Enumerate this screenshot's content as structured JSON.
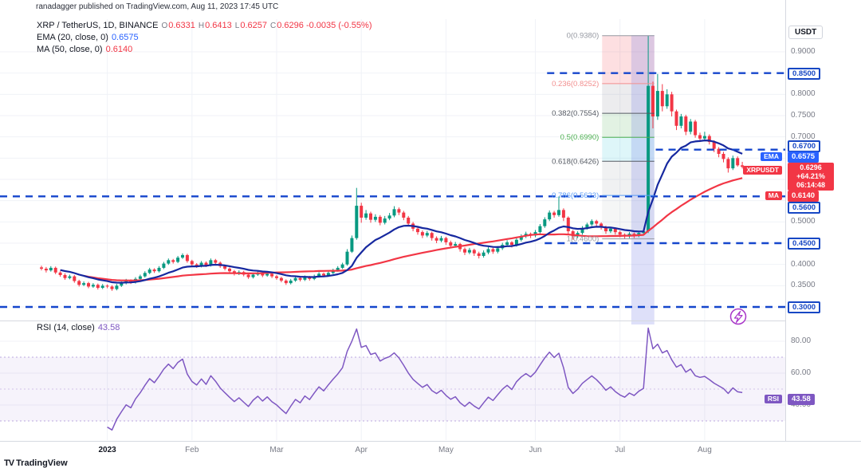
{
  "header": {
    "publish_line": "ranadagger published on TradingView.com, Aug 11, 2023 17:45 UTC"
  },
  "legend": {
    "symbol": "XRP / TetherUS, 1D, BINANCE",
    "ohlc": {
      "o_label": "O",
      "o": "0.6331",
      "h_label": "H",
      "h": "0.6413",
      "l_label": "L",
      "l": "0.6257",
      "c_label": "C",
      "c": "0.6296"
    },
    "change": "-0.0035 (-0.55%)",
    "ema_label": "EMA (20, close, 0)",
    "ema_value": "0.6575",
    "ma_label": "MA (50, close, 0)",
    "ma_value": "0.6140"
  },
  "rsi_legend": {
    "label": "RSI (14, close)",
    "value": "43.58"
  },
  "axis": {
    "currency_button": "USDT",
    "plain_ticks": [
      {
        "price": 0.9,
        "label": "0.9000"
      },
      {
        "price": 0.8,
        "label": "0.8000"
      },
      {
        "price": 0.75,
        "label": "0.7500"
      },
      {
        "price": 0.7,
        "label": "0.7000"
      },
      {
        "price": 0.5,
        "label": "0.5000"
      },
      {
        "price": 0.4,
        "label": "0.4000"
      },
      {
        "price": 0.35,
        "label": "0.3500"
      }
    ],
    "level_badges": [
      {
        "price": 0.85,
        "label": "0.8500"
      },
      {
        "price": 0.67,
        "label": "0.6700"
      },
      {
        "price": 0.56,
        "label": "0.5600"
      },
      {
        "price": 0.45,
        "label": "0.4500"
      },
      {
        "price": 0.3,
        "label": "0.3000"
      }
    ],
    "ema_badge": {
      "chip": "EMA",
      "value": "0.6575"
    },
    "ma_badge": {
      "chip": "MA",
      "value": "0.6140"
    },
    "symbol_badge": {
      "chip": "XRPUSDT",
      "value": "0.6296",
      "change": "+64.21%",
      "countdown": "06:14:48"
    },
    "rsi_badge": {
      "chip": "RSI",
      "value": "43.58"
    },
    "rsi_ticks": [
      {
        "v": 80,
        "label": "80.00"
      },
      {
        "v": 60,
        "label": "60.00"
      },
      {
        "v": 40,
        "label": "40.00"
      }
    ]
  },
  "time_axis": {
    "labels": [
      {
        "text": "2023",
        "index": 14,
        "year": true
      },
      {
        "text": "Feb",
        "index": 32
      },
      {
        "text": "Mar",
        "index": 50
      },
      {
        "text": "Apr",
        "index": 68
      },
      {
        "text": "May",
        "index": 86
      },
      {
        "text": "Jun",
        "index": 105
      },
      {
        "text": "Jul",
        "index": 123
      },
      {
        "text": "Aug",
        "index": 141
      }
    ]
  },
  "footer": {
    "mark": "TV",
    "brand": "TradingView"
  },
  "chart_data": {
    "type": "candlestick",
    "symbol": "XRP/USDT",
    "interval": "1D",
    "exchange": "BINANCE",
    "price_range": [
      0.27,
      0.95
    ],
    "grid": true,
    "colors": {
      "up": "#089981",
      "down": "#f23645"
    },
    "candles": [
      [
        0.393,
        0.397,
        0.386,
        0.39
      ],
      [
        0.39,
        0.394,
        0.381,
        0.386
      ],
      [
        0.386,
        0.396,
        0.383,
        0.392
      ],
      [
        0.392,
        0.395,
        0.377,
        0.381
      ],
      [
        0.381,
        0.384,
        0.371,
        0.375
      ],
      [
        0.375,
        0.379,
        0.364,
        0.368
      ],
      [
        0.368,
        0.376,
        0.365,
        0.372
      ],
      [
        0.372,
        0.375,
        0.357,
        0.361
      ],
      [
        0.361,
        0.364,
        0.348,
        0.352
      ],
      [
        0.352,
        0.36,
        0.349,
        0.356
      ],
      [
        0.356,
        0.359,
        0.344,
        0.348
      ],
      [
        0.348,
        0.356,
        0.345,
        0.352
      ],
      [
        0.352,
        0.355,
        0.341,
        0.345
      ],
      [
        0.345,
        0.354,
        0.342,
        0.35
      ],
      [
        0.35,
        0.353,
        0.344,
        0.348
      ],
      [
        0.348,
        0.351,
        0.338,
        0.342
      ],
      [
        0.342,
        0.354,
        0.339,
        0.35
      ],
      [
        0.35,
        0.36,
        0.347,
        0.356
      ],
      [
        0.356,
        0.366,
        0.353,
        0.362
      ],
      [
        0.362,
        0.365,
        0.354,
        0.358
      ],
      [
        0.358,
        0.37,
        0.355,
        0.366
      ],
      [
        0.366,
        0.376,
        0.363,
        0.372
      ],
      [
        0.372,
        0.384,
        0.369,
        0.38
      ],
      [
        0.38,
        0.392,
        0.377,
        0.388
      ],
      [
        0.388,
        0.391,
        0.38,
        0.384
      ],
      [
        0.384,
        0.396,
        0.381,
        0.392
      ],
      [
        0.392,
        0.406,
        0.389,
        0.402
      ],
      [
        0.402,
        0.414,
        0.399,
        0.41
      ],
      [
        0.41,
        0.413,
        0.402,
        0.406
      ],
      [
        0.406,
        0.42,
        0.403,
        0.416
      ],
      [
        0.416,
        0.426,
        0.413,
        0.422
      ],
      [
        0.422,
        0.425,
        0.404,
        0.408
      ],
      [
        0.408,
        0.411,
        0.396,
        0.4
      ],
      [
        0.4,
        0.403,
        0.392,
        0.396
      ],
      [
        0.396,
        0.408,
        0.393,
        0.404
      ],
      [
        0.404,
        0.407,
        0.394,
        0.398
      ],
      [
        0.398,
        0.414,
        0.395,
        0.41
      ],
      [
        0.41,
        0.413,
        0.4,
        0.404
      ],
      [
        0.404,
        0.407,
        0.392,
        0.396
      ],
      [
        0.396,
        0.399,
        0.386,
        0.39
      ],
      [
        0.39,
        0.393,
        0.38,
        0.384
      ],
      [
        0.384,
        0.387,
        0.374,
        0.378
      ],
      [
        0.378,
        0.386,
        0.375,
        0.382
      ],
      [
        0.382,
        0.385,
        0.372,
        0.376
      ],
      [
        0.376,
        0.379,
        0.366,
        0.37
      ],
      [
        0.37,
        0.38,
        0.367,
        0.376
      ],
      [
        0.376,
        0.384,
        0.373,
        0.38
      ],
      [
        0.38,
        0.383,
        0.37,
        0.374
      ],
      [
        0.374,
        0.382,
        0.371,
        0.378
      ],
      [
        0.378,
        0.381,
        0.368,
        0.372
      ],
      [
        0.372,
        0.375,
        0.364,
        0.368
      ],
      [
        0.368,
        0.371,
        0.358,
        0.362
      ],
      [
        0.362,
        0.365,
        0.352,
        0.356
      ],
      [
        0.356,
        0.366,
        0.353,
        0.362
      ],
      [
        0.362,
        0.372,
        0.359,
        0.368
      ],
      [
        0.368,
        0.371,
        0.36,
        0.364
      ],
      [
        0.364,
        0.374,
        0.361,
        0.37
      ],
      [
        0.37,
        0.373,
        0.362,
        0.366
      ],
      [
        0.366,
        0.376,
        0.363,
        0.372
      ],
      [
        0.372,
        0.382,
        0.369,
        0.378
      ],
      [
        0.378,
        0.381,
        0.37,
        0.374
      ],
      [
        0.374,
        0.384,
        0.371,
        0.38
      ],
      [
        0.38,
        0.39,
        0.377,
        0.386
      ],
      [
        0.386,
        0.396,
        0.383,
        0.392
      ],
      [
        0.392,
        0.404,
        0.389,
        0.4
      ],
      [
        0.4,
        0.436,
        0.397,
        0.43
      ],
      [
        0.43,
        0.468,
        0.427,
        0.462
      ],
      [
        0.462,
        0.58,
        0.458,
        0.538
      ],
      [
        0.538,
        0.545,
        0.498,
        0.51
      ],
      [
        0.51,
        0.528,
        0.505,
        0.52
      ],
      [
        0.52,
        0.524,
        0.498,
        0.505
      ],
      [
        0.505,
        0.518,
        0.5,
        0.512
      ],
      [
        0.512,
        0.516,
        0.492,
        0.498
      ],
      [
        0.498,
        0.514,
        0.494,
        0.508
      ],
      [
        0.508,
        0.521,
        0.504,
        0.515
      ],
      [
        0.515,
        0.537,
        0.511,
        0.53
      ],
      [
        0.53,
        0.534,
        0.516,
        0.522
      ],
      [
        0.522,
        0.526,
        0.504,
        0.51
      ],
      [
        0.51,
        0.514,
        0.49,
        0.496
      ],
      [
        0.496,
        0.5,
        0.478,
        0.484
      ],
      [
        0.484,
        0.488,
        0.47,
        0.476
      ],
      [
        0.476,
        0.48,
        0.462,
        0.468
      ],
      [
        0.468,
        0.479,
        0.464,
        0.474
      ],
      [
        0.474,
        0.477,
        0.456,
        0.462
      ],
      [
        0.462,
        0.466,
        0.45,
        0.456
      ],
      [
        0.456,
        0.467,
        0.452,
        0.462
      ],
      [
        0.462,
        0.465,
        0.446,
        0.452
      ],
      [
        0.452,
        0.456,
        0.438,
        0.444
      ],
      [
        0.444,
        0.453,
        0.44,
        0.448
      ],
      [
        0.448,
        0.451,
        0.43,
        0.436
      ],
      [
        0.436,
        0.44,
        0.422,
        0.428
      ],
      [
        0.428,
        0.439,
        0.424,
        0.434
      ],
      [
        0.434,
        0.437,
        0.42,
        0.426
      ],
      [
        0.426,
        0.43,
        0.414,
        0.42
      ],
      [
        0.42,
        0.433,
        0.416,
        0.428
      ],
      [
        0.428,
        0.441,
        0.424,
        0.436
      ],
      [
        0.436,
        0.439,
        0.425,
        0.43
      ],
      [
        0.43,
        0.443,
        0.426,
        0.438
      ],
      [
        0.438,
        0.451,
        0.434,
        0.446
      ],
      [
        0.446,
        0.457,
        0.442,
        0.452
      ],
      [
        0.452,
        0.455,
        0.44,
        0.446
      ],
      [
        0.446,
        0.463,
        0.442,
        0.458
      ],
      [
        0.458,
        0.471,
        0.454,
        0.466
      ],
      [
        0.466,
        0.477,
        0.462,
        0.472
      ],
      [
        0.472,
        0.475,
        0.462,
        0.468
      ],
      [
        0.468,
        0.481,
        0.464,
        0.476
      ],
      [
        0.476,
        0.495,
        0.472,
        0.49
      ],
      [
        0.49,
        0.511,
        0.486,
        0.506
      ],
      [
        0.506,
        0.527,
        0.502,
        0.522
      ],
      [
        0.522,
        0.526,
        0.51,
        0.516
      ],
      [
        0.516,
        0.56,
        0.512,
        0.528
      ],
      [
        0.528,
        0.532,
        0.502,
        0.51
      ],
      [
        0.51,
        0.513,
        0.47,
        0.478
      ],
      [
        0.478,
        0.481,
        0.458,
        0.466
      ],
      [
        0.466,
        0.478,
        0.462,
        0.474
      ],
      [
        0.474,
        0.49,
        0.47,
        0.486
      ],
      [
        0.486,
        0.498,
        0.482,
        0.494
      ],
      [
        0.494,
        0.506,
        0.49,
        0.502
      ],
      [
        0.502,
        0.505,
        0.49,
        0.496
      ],
      [
        0.496,
        0.499,
        0.482,
        0.488
      ],
      [
        0.488,
        0.491,
        0.472,
        0.478
      ],
      [
        0.478,
        0.488,
        0.474,
        0.484
      ],
      [
        0.484,
        0.487,
        0.47,
        0.476
      ],
      [
        0.476,
        0.479,
        0.464,
        0.47
      ],
      [
        0.47,
        0.473,
        0.46,
        0.466
      ],
      [
        0.466,
        0.476,
        0.462,
        0.472
      ],
      [
        0.472,
        0.475,
        0.462,
        0.468
      ],
      [
        0.468,
        0.478,
        0.464,
        0.474
      ],
      [
        0.474,
        0.482,
        0.47,
        0.478
      ],
      [
        0.478,
        0.938,
        0.474,
        0.82
      ],
      [
        0.82,
        0.83,
        0.72,
        0.748
      ],
      [
        0.748,
        0.848,
        0.74,
        0.808
      ],
      [
        0.808,
        0.824,
        0.76,
        0.772
      ],
      [
        0.772,
        0.812,
        0.766,
        0.8
      ],
      [
        0.8,
        0.806,
        0.748,
        0.76
      ],
      [
        0.76,
        0.764,
        0.716,
        0.726
      ],
      [
        0.726,
        0.754,
        0.72,
        0.748
      ],
      [
        0.748,
        0.752,
        0.704,
        0.712
      ],
      [
        0.712,
        0.742,
        0.706,
        0.736
      ],
      [
        0.736,
        0.74,
        0.698,
        0.704
      ],
      [
        0.704,
        0.71,
        0.688,
        0.696
      ],
      [
        0.696,
        0.712,
        0.69,
        0.702
      ],
      [
        0.702,
        0.706,
        0.682,
        0.688
      ],
      [
        0.688,
        0.692,
        0.664,
        0.672
      ],
      [
        0.672,
        0.676,
        0.652,
        0.66
      ],
      [
        0.66,
        0.665,
        0.64,
        0.648
      ],
      [
        0.648,
        0.652,
        0.616,
        0.626
      ],
      [
        0.626,
        0.656,
        0.622,
        0.65
      ],
      [
        0.65,
        0.654,
        0.63,
        0.6331
      ],
      [
        0.6331,
        0.6413,
        0.6257,
        0.6296
      ]
    ],
    "overlays": [
      {
        "name": "EMA",
        "period": 20,
        "value": 0.6575,
        "color": "#16289f",
        "render_period": 14
      },
      {
        "name": "MA",
        "period": 50,
        "value": 0.614,
        "color": "#f23645",
        "render_period": 40
      }
    ],
    "fib": {
      "from_index": 119.2,
      "to_index": 130.3,
      "levels": [
        {
          "ratio": "0",
          "price": 0.938,
          "label": "0(0.9380)",
          "color": "#9598a1"
        },
        {
          "ratio": "0.236",
          "price": 0.8252,
          "label": "0.236(0.8252)",
          "color": "#f28e8e"
        },
        {
          "ratio": "0.382",
          "price": 0.7554,
          "label": "0.382(0.7554)",
          "color": "#555a63"
        },
        {
          "ratio": "0.5",
          "price": 0.699,
          "label": "0.5(0.6990)",
          "color": "#4caf50"
        },
        {
          "ratio": "0.618",
          "price": 0.6426,
          "label": "0.618(0.6426)",
          "color": "#555a63"
        },
        {
          "ratio": "0.786",
          "price": 0.5623,
          "label": "0.786(0.5623)",
          "color": "#5b9cf6"
        },
        {
          "ratio": "1",
          "price": 0.46,
          "label": "1(0.4600)",
          "color": "#9598a1"
        }
      ],
      "zone_colors": [
        "rgba(242,54,69,0.16)",
        "rgba(120,123,134,0.14)",
        "rgba(76,175,80,0.16)",
        "rgba(0,188,212,0.13)",
        "rgba(120,123,134,0.11)",
        "rgba(120,123,134,0.07)"
      ]
    },
    "hlines": [
      {
        "price": 0.85,
        "label": "0.8500",
        "from_index": 107.5
      },
      {
        "price": 0.67,
        "label": "0.6700",
        "from_index": 130.6
      },
      {
        "price": 0.56,
        "label": "0.5600",
        "from_index": null
      },
      {
        "price": 0.45,
        "label": "0.4500",
        "from_index": 107
      },
      {
        "price": 0.3,
        "label": "0.3000",
        "from_index": null
      }
    ],
    "highlight_band": {
      "from_index": 125.4,
      "to_index": 130.3,
      "color": "rgba(103,113,229,0.22)"
    },
    "rsi": {
      "period": 14,
      "value": 43.58,
      "color": "#7e57c2",
      "band": [
        30,
        70
      ],
      "ticks": [
        80,
        60,
        40
      ]
    }
  }
}
